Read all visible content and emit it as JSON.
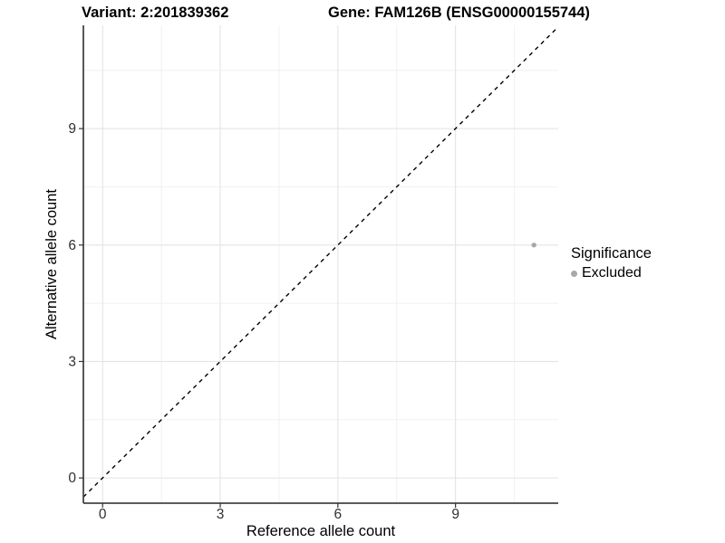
{
  "colors": {
    "background": "#ffffff",
    "title": "#000000",
    "tick_label": "#303030",
    "axis_line": "#454545",
    "tick_mark": "#333333",
    "grid_major": "#e4e4e4",
    "grid_minor": "#f1f1f1",
    "point": "#a8a8a8",
    "reference_line": "#000000"
  },
  "chart_data": {
    "type": "scatter",
    "title_left": "Variant: 2:201839362",
    "title_right": "Gene: FAM126B (ENSG00000155744)",
    "xlabel": "Reference allele count",
    "ylabel": "Alternative allele count",
    "xlim": [
      -0.49,
      11.62
    ],
    "ylim": [
      -0.65,
      11.66
    ],
    "x_ticks": [
      0,
      3,
      6,
      9
    ],
    "y_ticks": [
      0,
      3,
      6,
      9
    ],
    "x_minor_ticks": [
      1.5,
      4.5,
      7.5,
      10.5
    ],
    "y_minor_ticks": [
      1.5,
      4.5,
      7.5,
      10.5
    ],
    "grid": true,
    "reference_line": {
      "type": "identity",
      "slope": 1,
      "intercept": 0,
      "style": "dashed"
    },
    "series": [
      {
        "name": "Excluded",
        "color": "#a8a8a8",
        "points": [
          {
            "x": 11,
            "y": 6
          }
        ]
      }
    ],
    "legend": {
      "title": "Significance",
      "position": "right",
      "entries": [
        {
          "label": "Excluded",
          "color": "#a8a8a8"
        }
      ]
    }
  }
}
